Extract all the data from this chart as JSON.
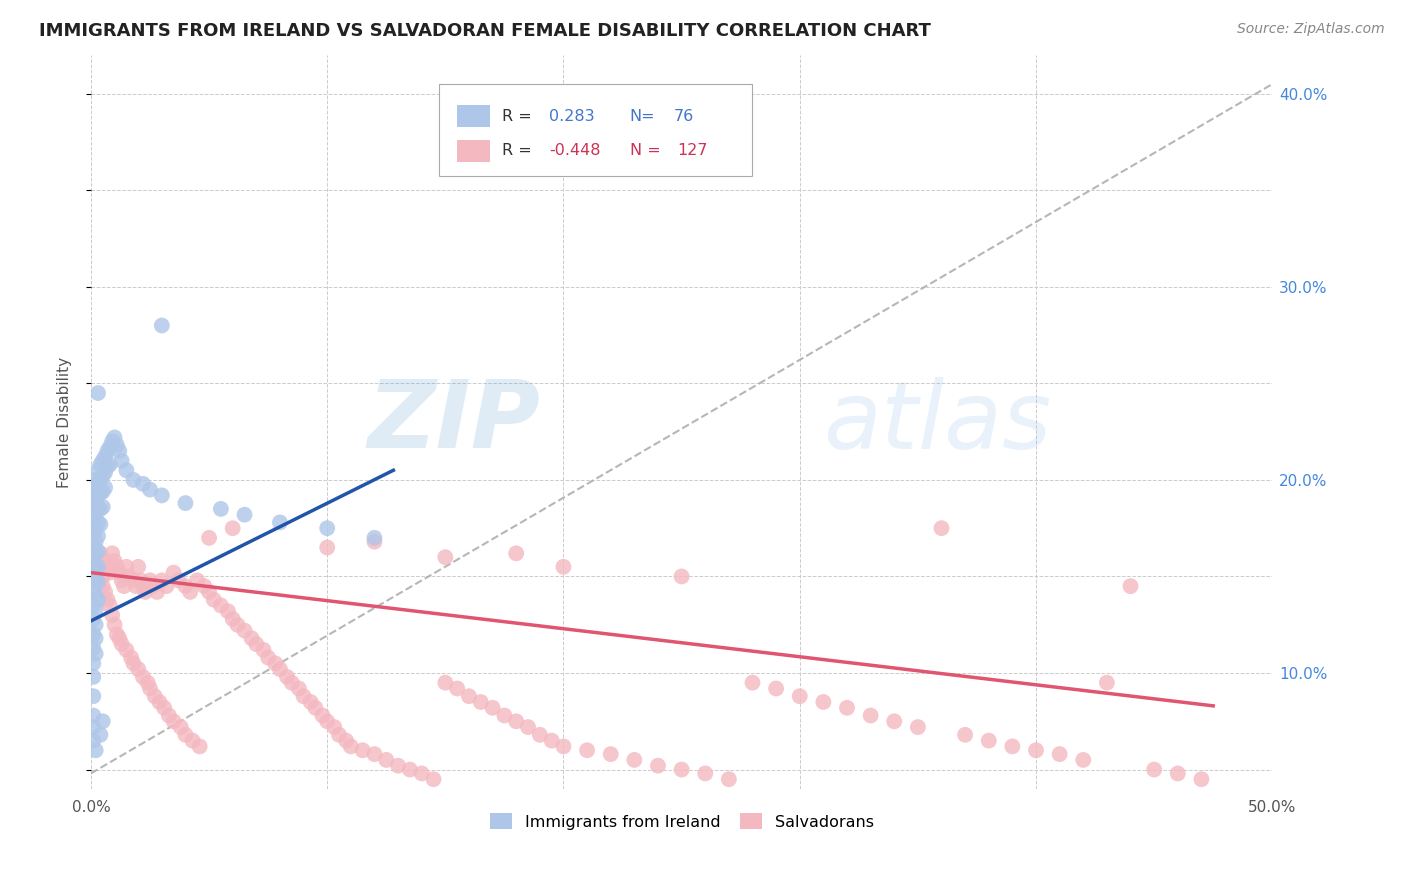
{
  "title": "IMMIGRANTS FROM IRELAND VS SALVADORAN FEMALE DISABILITY CORRELATION CHART",
  "source": "Source: ZipAtlas.com",
  "ylabel": "Female Disability",
  "xlim": [
    0.0,
    0.5
  ],
  "ylim": [
    0.04,
    0.42
  ],
  "grid_color": "#cccccc",
  "background_color": "#ffffff",
  "ireland_color": "#aec6e8",
  "ireland_line_color": "#2255aa",
  "salvadoran_color": "#f4b8c1",
  "salvadoran_line_color": "#e05570",
  "legend_r_ireland": "0.283",
  "legend_n_ireland": "76",
  "legend_r_salvadoran": "-0.448",
  "legend_n_salvadoran": "127",
  "ireland_line": [
    [
      0.0,
      0.127
    ],
    [
      0.128,
      0.205
    ]
  ],
  "salvadoran_line": [
    [
      0.0,
      0.152
    ],
    [
      0.475,
      0.083
    ]
  ],
  "ref_line": [
    [
      0.0,
      0.048
    ],
    [
      0.5,
      0.405
    ]
  ],
  "ireland_points": [
    [
      0.001,
      0.197
    ],
    [
      0.001,
      0.188
    ],
    [
      0.001,
      0.18
    ],
    [
      0.001,
      0.172
    ],
    [
      0.001,
      0.165
    ],
    [
      0.001,
      0.158
    ],
    [
      0.001,
      0.15
    ],
    [
      0.001,
      0.143
    ],
    [
      0.001,
      0.135
    ],
    [
      0.001,
      0.128
    ],
    [
      0.001,
      0.12
    ],
    [
      0.001,
      0.113
    ],
    [
      0.001,
      0.105
    ],
    [
      0.001,
      0.098
    ],
    [
      0.001,
      0.088
    ],
    [
      0.001,
      0.078
    ],
    [
      0.002,
      0.2
    ],
    [
      0.002,
      0.195
    ],
    [
      0.002,
      0.188
    ],
    [
      0.002,
      0.182
    ],
    [
      0.002,
      0.175
    ],
    [
      0.002,
      0.168
    ],
    [
      0.002,
      0.162
    ],
    [
      0.002,
      0.155
    ],
    [
      0.002,
      0.148
    ],
    [
      0.002,
      0.14
    ],
    [
      0.002,
      0.133
    ],
    [
      0.002,
      0.125
    ],
    [
      0.002,
      0.118
    ],
    [
      0.002,
      0.11
    ],
    [
      0.003,
      0.205
    ],
    [
      0.003,
      0.198
    ],
    [
      0.003,
      0.192
    ],
    [
      0.003,
      0.185
    ],
    [
      0.003,
      0.178
    ],
    [
      0.003,
      0.171
    ],
    [
      0.003,
      0.163
    ],
    [
      0.003,
      0.155
    ],
    [
      0.003,
      0.147
    ],
    [
      0.003,
      0.138
    ],
    [
      0.004,
      0.208
    ],
    [
      0.004,
      0.2
    ],
    [
      0.004,
      0.193
    ],
    [
      0.004,
      0.185
    ],
    [
      0.004,
      0.177
    ],
    [
      0.005,
      0.21
    ],
    [
      0.005,
      0.202
    ],
    [
      0.005,
      0.194
    ],
    [
      0.005,
      0.186
    ],
    [
      0.006,
      0.212
    ],
    [
      0.006,
      0.204
    ],
    [
      0.006,
      0.196
    ],
    [
      0.007,
      0.215
    ],
    [
      0.007,
      0.207
    ],
    [
      0.008,
      0.217
    ],
    [
      0.008,
      0.208
    ],
    [
      0.009,
      0.22
    ],
    [
      0.01,
      0.222
    ],
    [
      0.011,
      0.218
    ],
    [
      0.012,
      0.215
    ],
    [
      0.013,
      0.21
    ],
    [
      0.015,
      0.205
    ],
    [
      0.018,
      0.2
    ],
    [
      0.022,
      0.198
    ],
    [
      0.025,
      0.195
    ],
    [
      0.03,
      0.192
    ],
    [
      0.04,
      0.188
    ],
    [
      0.055,
      0.185
    ],
    [
      0.065,
      0.182
    ],
    [
      0.08,
      0.178
    ],
    [
      0.1,
      0.175
    ],
    [
      0.12,
      0.17
    ],
    [
      0.03,
      0.28
    ],
    [
      0.001,
      0.072
    ],
    [
      0.001,
      0.065
    ],
    [
      0.003,
      0.245
    ],
    [
      0.002,
      0.06
    ],
    [
      0.004,
      0.068
    ],
    [
      0.005,
      0.075
    ]
  ],
  "salvadoran_points": [
    [
      0.002,
      0.158
    ],
    [
      0.003,
      0.155
    ],
    [
      0.004,
      0.162
    ],
    [
      0.005,
      0.15
    ],
    [
      0.005,
      0.145
    ],
    [
      0.006,
      0.158
    ],
    [
      0.006,
      0.142
    ],
    [
      0.007,
      0.155
    ],
    [
      0.007,
      0.138
    ],
    [
      0.008,
      0.152
    ],
    [
      0.008,
      0.135
    ],
    [
      0.009,
      0.162
    ],
    [
      0.009,
      0.13
    ],
    [
      0.01,
      0.158
    ],
    [
      0.01,
      0.125
    ],
    [
      0.011,
      0.155
    ],
    [
      0.011,
      0.12
    ],
    [
      0.012,
      0.152
    ],
    [
      0.012,
      0.118
    ],
    [
      0.013,
      0.148
    ],
    [
      0.013,
      0.115
    ],
    [
      0.014,
      0.145
    ],
    [
      0.015,
      0.155
    ],
    [
      0.015,
      0.112
    ],
    [
      0.016,
      0.15
    ],
    [
      0.017,
      0.108
    ],
    [
      0.018,
      0.148
    ],
    [
      0.018,
      0.105
    ],
    [
      0.019,
      0.145
    ],
    [
      0.02,
      0.155
    ],
    [
      0.02,
      0.102
    ],
    [
      0.021,
      0.148
    ],
    [
      0.022,
      0.145
    ],
    [
      0.022,
      0.098
    ],
    [
      0.023,
      0.142
    ],
    [
      0.024,
      0.095
    ],
    [
      0.025,
      0.148
    ],
    [
      0.025,
      0.092
    ],
    [
      0.026,
      0.145
    ],
    [
      0.027,
      0.088
    ],
    [
      0.028,
      0.142
    ],
    [
      0.029,
      0.085
    ],
    [
      0.03,
      0.148
    ],
    [
      0.031,
      0.082
    ],
    [
      0.032,
      0.145
    ],
    [
      0.033,
      0.078
    ],
    [
      0.035,
      0.152
    ],
    [
      0.035,
      0.075
    ],
    [
      0.037,
      0.148
    ],
    [
      0.038,
      0.072
    ],
    [
      0.04,
      0.145
    ],
    [
      0.04,
      0.068
    ],
    [
      0.042,
      0.142
    ],
    [
      0.043,
      0.065
    ],
    [
      0.045,
      0.148
    ],
    [
      0.046,
      0.062
    ],
    [
      0.048,
      0.145
    ],
    [
      0.05,
      0.142
    ],
    [
      0.052,
      0.138
    ],
    [
      0.055,
      0.135
    ],
    [
      0.058,
      0.132
    ],
    [
      0.06,
      0.128
    ],
    [
      0.062,
      0.125
    ],
    [
      0.065,
      0.122
    ],
    [
      0.068,
      0.118
    ],
    [
      0.07,
      0.115
    ],
    [
      0.073,
      0.112
    ],
    [
      0.075,
      0.108
    ],
    [
      0.078,
      0.105
    ],
    [
      0.08,
      0.102
    ],
    [
      0.083,
      0.098
    ],
    [
      0.085,
      0.095
    ],
    [
      0.088,
      0.092
    ],
    [
      0.09,
      0.088
    ],
    [
      0.093,
      0.085
    ],
    [
      0.095,
      0.082
    ],
    [
      0.098,
      0.078
    ],
    [
      0.1,
      0.075
    ],
    [
      0.103,
      0.072
    ],
    [
      0.105,
      0.068
    ],
    [
      0.108,
      0.065
    ],
    [
      0.11,
      0.062
    ],
    [
      0.115,
      0.06
    ],
    [
      0.12,
      0.058
    ],
    [
      0.125,
      0.055
    ],
    [
      0.13,
      0.052
    ],
    [
      0.135,
      0.05
    ],
    [
      0.14,
      0.048
    ],
    [
      0.145,
      0.045
    ],
    [
      0.15,
      0.095
    ],
    [
      0.155,
      0.092
    ],
    [
      0.16,
      0.088
    ],
    [
      0.165,
      0.085
    ],
    [
      0.17,
      0.082
    ],
    [
      0.175,
      0.078
    ],
    [
      0.18,
      0.075
    ],
    [
      0.185,
      0.072
    ],
    [
      0.19,
      0.068
    ],
    [
      0.195,
      0.065
    ],
    [
      0.2,
      0.062
    ],
    [
      0.21,
      0.06
    ],
    [
      0.22,
      0.058
    ],
    [
      0.23,
      0.055
    ],
    [
      0.24,
      0.052
    ],
    [
      0.25,
      0.05
    ],
    [
      0.26,
      0.048
    ],
    [
      0.27,
      0.045
    ],
    [
      0.28,
      0.095
    ],
    [
      0.29,
      0.092
    ],
    [
      0.3,
      0.088
    ],
    [
      0.31,
      0.085
    ],
    [
      0.32,
      0.082
    ],
    [
      0.33,
      0.078
    ],
    [
      0.34,
      0.075
    ],
    [
      0.35,
      0.072
    ],
    [
      0.36,
      0.175
    ],
    [
      0.37,
      0.068
    ],
    [
      0.38,
      0.065
    ],
    [
      0.39,
      0.062
    ],
    [
      0.4,
      0.06
    ],
    [
      0.41,
      0.058
    ],
    [
      0.42,
      0.055
    ],
    [
      0.43,
      0.095
    ],
    [
      0.44,
      0.145
    ],
    [
      0.45,
      0.05
    ],
    [
      0.46,
      0.048
    ],
    [
      0.47,
      0.045
    ],
    [
      0.05,
      0.17
    ],
    [
      0.1,
      0.165
    ],
    [
      0.15,
      0.16
    ],
    [
      0.2,
      0.155
    ],
    [
      0.25,
      0.15
    ],
    [
      0.06,
      0.175
    ],
    [
      0.12,
      0.168
    ],
    [
      0.18,
      0.162
    ]
  ]
}
